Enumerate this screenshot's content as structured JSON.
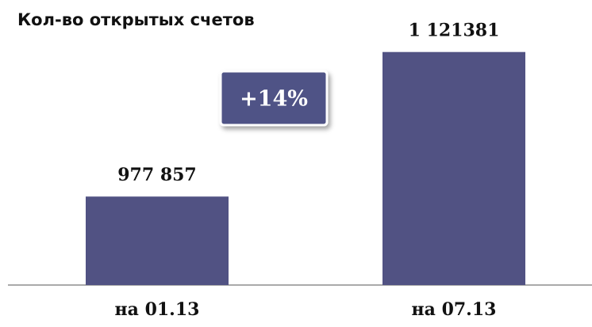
{
  "chart_data": {
    "type": "bar",
    "title": "Кол-во открытых счетов",
    "categories": [
      "на 01.13",
      "на 07.13"
    ],
    "values": [
      977857,
      1121381
    ],
    "value_labels": [
      "977 857",
      "1 121381"
    ],
    "color": "#515283",
    "ylim": [
      890000,
      1140000
    ],
    "annotation": "+14%"
  }
}
